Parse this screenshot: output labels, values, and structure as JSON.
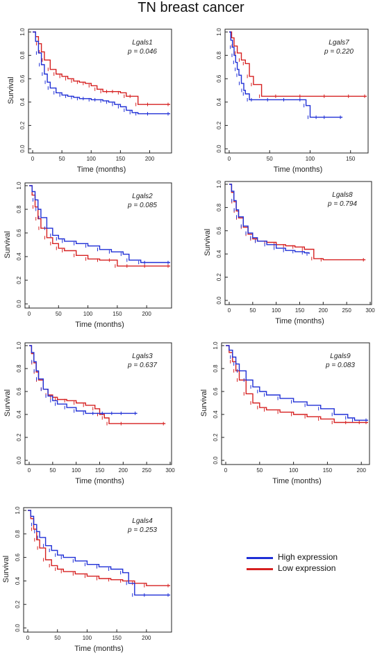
{
  "title": "TN breast cancer",
  "legend": {
    "entries": [
      {
        "label": "High expression",
        "color": "#1f2fd6"
      },
      {
        "label": "Low expression",
        "color": "#d62020"
      }
    ]
  },
  "chart_data": [
    {
      "type": "line",
      "gene": "Lgals1",
      "pvalue": "p = 0.046",
      "xlabel": "Time (months)",
      "ylabel": "Survival",
      "xlim": [
        0,
        235
      ],
      "ylim": [
        0,
        1
      ],
      "xticks": [
        "0",
        "50",
        "100",
        "150",
        "200"
      ],
      "yticks": [
        "0.0",
        "0.2",
        "0.4",
        "0.6",
        "0.8",
        "1.0"
      ],
      "grid": false,
      "series": [
        {
          "name": "High expression",
          "color": "#1f2fd6",
          "x": [
            0,
            5,
            10,
            15,
            20,
            25,
            30,
            40,
            50,
            60,
            70,
            80,
            90,
            100,
            110,
            120,
            130,
            140,
            150,
            160,
            170,
            180,
            200,
            235
          ],
          "y": [
            1,
            0.92,
            0.82,
            0.72,
            0.64,
            0.57,
            0.52,
            0.48,
            0.46,
            0.45,
            0.44,
            0.43,
            0.43,
            0.42,
            0.42,
            0.41,
            0.4,
            0.38,
            0.36,
            0.33,
            0.31,
            0.3,
            0.3,
            0.3
          ]
        },
        {
          "name": "Low expression",
          "color": "#d62020",
          "x": [
            0,
            5,
            10,
            15,
            20,
            30,
            40,
            50,
            60,
            70,
            80,
            90,
            100,
            110,
            120,
            130,
            140,
            150,
            160,
            170,
            180,
            200,
            235
          ],
          "y": [
            1,
            0.96,
            0.9,
            0.83,
            0.76,
            0.68,
            0.64,
            0.62,
            0.6,
            0.58,
            0.57,
            0.56,
            0.54,
            0.51,
            0.49,
            0.49,
            0.49,
            0.48,
            0.45,
            0.45,
            0.38,
            0.38,
            0.38
          ]
        }
      ]
    },
    {
      "type": "line",
      "gene": "Lgals7",
      "pvalue": "p = 0.220",
      "xlabel": "Time (months)",
      "ylabel": "",
      "xlim": [
        0,
        170
      ],
      "ylim": [
        0,
        1
      ],
      "xticks": [
        "0",
        "50",
        "100",
        "150"
      ],
      "yticks": [
        "0.0",
        "0.2",
        "0.4",
        "0.6",
        "0.8",
        "1.0"
      ],
      "grid": false,
      "series": [
        {
          "name": "High expression",
          "color": "#1f2fd6",
          "x": [
            0,
            2,
            4,
            6,
            8,
            10,
            12,
            15,
            18,
            20,
            25,
            30,
            50,
            70,
            90,
            95,
            100,
            110,
            120,
            140
          ],
          "y": [
            1,
            0.93,
            0.87,
            0.8,
            0.74,
            0.68,
            0.63,
            0.56,
            0.5,
            0.47,
            0.42,
            0.42,
            0.42,
            0.42,
            0.42,
            0.37,
            0.27,
            0.27,
            0.27,
            0.27
          ]
        },
        {
          "name": "Low expression",
          "color": "#d62020",
          "x": [
            0,
            3,
            6,
            10,
            15,
            20,
            25,
            30,
            40,
            60,
            90,
            120,
            150,
            170
          ],
          "y": [
            1,
            0.95,
            0.88,
            0.82,
            0.76,
            0.73,
            0.62,
            0.55,
            0.45,
            0.45,
            0.45,
            0.45,
            0.45,
            0.45
          ]
        }
      ]
    },
    {
      "type": "line",
      "gene": "Lgals2",
      "pvalue": "p = 0.085",
      "xlabel": "Time (months)",
      "ylabel": "Survival",
      "xlim": [
        0,
        240
      ],
      "ylim": [
        0,
        1
      ],
      "xticks": [
        "0",
        "50",
        "100",
        "150",
        "200"
      ],
      "yticks": [
        "0.0",
        "0.2",
        "0.4",
        "0.6",
        "0.8",
        "1.0"
      ],
      "grid": false,
      "series": [
        {
          "name": "High expression",
          "color": "#1f2fd6",
          "x": [
            0,
            5,
            10,
            15,
            20,
            30,
            40,
            50,
            60,
            80,
            100,
            120,
            140,
            160,
            170,
            190,
            200,
            240
          ],
          "y": [
            1,
            0.95,
            0.88,
            0.8,
            0.73,
            0.64,
            0.58,
            0.55,
            0.53,
            0.51,
            0.49,
            0.46,
            0.44,
            0.42,
            0.37,
            0.35,
            0.35,
            0.35
          ]
        },
        {
          "name": "Low expression",
          "color": "#d62020",
          "x": [
            0,
            5,
            10,
            15,
            20,
            30,
            40,
            50,
            60,
            80,
            100,
            120,
            140,
            150,
            170,
            200,
            240
          ],
          "y": [
            1,
            0.92,
            0.82,
            0.72,
            0.64,
            0.56,
            0.51,
            0.47,
            0.45,
            0.41,
            0.38,
            0.37,
            0.37,
            0.32,
            0.32,
            0.32,
            0.32
          ]
        }
      ]
    },
    {
      "type": "line",
      "gene": "Lgals8",
      "pvalue": "p = 0.794",
      "xlabel": "Time (months)",
      "ylabel": "Survival",
      "xlim": [
        0,
        300
      ],
      "ylim": [
        0,
        1
      ],
      "xticks": [
        "0",
        "50",
        "100",
        "150",
        "200",
        "250",
        "300"
      ],
      "yticks": [
        "0.0",
        "0.2",
        "0.4",
        "0.6",
        "0.8",
        "1.0"
      ],
      "grid": false,
      "series": [
        {
          "name": "High expression",
          "color": "#1f2fd6",
          "x": [
            0,
            5,
            10,
            15,
            20,
            30,
            40,
            50,
            60,
            80,
            100,
            120,
            140,
            160,
            170
          ],
          "y": [
            1,
            0.94,
            0.86,
            0.78,
            0.72,
            0.64,
            0.58,
            0.54,
            0.51,
            0.48,
            0.45,
            0.43,
            0.42,
            0.41,
            0.4
          ]
        },
        {
          "name": "Low expression",
          "color": "#d62020",
          "x": [
            0,
            5,
            10,
            15,
            20,
            30,
            40,
            50,
            60,
            80,
            100,
            120,
            140,
            160,
            180,
            200,
            290
          ],
          "y": [
            1,
            0.93,
            0.85,
            0.77,
            0.71,
            0.63,
            0.57,
            0.53,
            0.51,
            0.5,
            0.48,
            0.47,
            0.46,
            0.44,
            0.36,
            0.35,
            0.35
          ]
        }
      ]
    },
    {
      "type": "line",
      "gene": "Lgals3",
      "pvalue": "p = 0.637",
      "xlabel": "Time (months)",
      "ylabel": "Survival",
      "xlim": [
        0,
        300
      ],
      "ylim": [
        0,
        1
      ],
      "xticks": [
        "0",
        "50",
        "100",
        "150",
        "200",
        "250",
        "300"
      ],
      "yticks": [
        "0.0",
        "0.2",
        "0.4",
        "0.6",
        "0.8",
        "1.0"
      ],
      "grid": false,
      "series": [
        {
          "name": "High expression",
          "color": "#1f2fd6",
          "x": [
            0,
            5,
            10,
            15,
            20,
            30,
            40,
            50,
            60,
            80,
            100,
            120,
            140,
            160,
            180,
            200,
            230
          ],
          "y": [
            1,
            0.94,
            0.86,
            0.78,
            0.71,
            0.62,
            0.56,
            0.52,
            0.49,
            0.46,
            0.43,
            0.41,
            0.41,
            0.41,
            0.41,
            0.41,
            0.41
          ]
        },
        {
          "name": "Low expression",
          "color": "#d62020",
          "x": [
            0,
            5,
            10,
            15,
            20,
            30,
            40,
            50,
            60,
            80,
            100,
            120,
            140,
            150,
            160,
            170,
            200,
            290
          ],
          "y": [
            1,
            0.93,
            0.85,
            0.77,
            0.7,
            0.62,
            0.57,
            0.55,
            0.53,
            0.52,
            0.5,
            0.48,
            0.45,
            0.4,
            0.37,
            0.32,
            0.32,
            0.32
          ]
        }
      ]
    },
    {
      "type": "line",
      "gene": "Lgals9",
      "pvalue": "p = 0.083",
      "xlabel": "Time (months)",
      "ylabel": "Survival",
      "xlim": [
        0,
        210
      ],
      "ylim": [
        0,
        1
      ],
      "xticks": [
        "0",
        "50",
        "100",
        "150",
        "200"
      ],
      "yticks": [
        "0.0",
        "0.2",
        "0.4",
        "0.6",
        "0.8",
        "1.0"
      ],
      "grid": false,
      "series": [
        {
          "name": "High expression",
          "color": "#1f2fd6",
          "x": [
            0,
            5,
            10,
            15,
            20,
            30,
            40,
            50,
            60,
            80,
            100,
            120,
            140,
            160,
            180,
            190,
            210
          ],
          "y": [
            1,
            0.96,
            0.9,
            0.84,
            0.78,
            0.7,
            0.64,
            0.6,
            0.57,
            0.54,
            0.51,
            0.48,
            0.45,
            0.4,
            0.37,
            0.35,
            0.35
          ]
        },
        {
          "name": "Low expression",
          "color": "#d62020",
          "x": [
            0,
            5,
            10,
            15,
            20,
            30,
            40,
            50,
            60,
            80,
            100,
            120,
            140,
            160,
            180,
            200,
            210
          ],
          "y": [
            1,
            0.94,
            0.86,
            0.78,
            0.7,
            0.58,
            0.5,
            0.46,
            0.44,
            0.42,
            0.4,
            0.38,
            0.36,
            0.33,
            0.33,
            0.33,
            0.33
          ]
        }
      ]
    },
    {
      "type": "line",
      "gene": "Lgals4",
      "pvalue": "p = 0.253",
      "xlabel": "Time (months)",
      "ylabel": "Survival",
      "xlim": [
        0,
        240
      ],
      "ylim": [
        0,
        1
      ],
      "xticks": [
        "0",
        "50",
        "100",
        "150",
        "200"
      ],
      "yticks": [
        "0.0",
        "0.2",
        "0.4",
        "0.6",
        "0.8",
        "1.0"
      ],
      "grid": false,
      "series": [
        {
          "name": "High expression",
          "color": "#1f2fd6",
          "x": [
            0,
            5,
            10,
            15,
            20,
            30,
            40,
            50,
            60,
            80,
            100,
            120,
            140,
            160,
            170,
            180,
            200,
            240
          ],
          "y": [
            1,
            0.95,
            0.88,
            0.82,
            0.77,
            0.7,
            0.66,
            0.62,
            0.6,
            0.57,
            0.54,
            0.52,
            0.5,
            0.47,
            0.38,
            0.28,
            0.28,
            0.28
          ]
        },
        {
          "name": "Low expression",
          "color": "#d62020",
          "x": [
            0,
            5,
            10,
            15,
            20,
            30,
            40,
            50,
            60,
            80,
            100,
            120,
            140,
            160,
            180,
            200,
            240
          ],
          "y": [
            1,
            0.93,
            0.84,
            0.75,
            0.68,
            0.58,
            0.53,
            0.5,
            0.48,
            0.46,
            0.44,
            0.42,
            0.41,
            0.4,
            0.38,
            0.36,
            0.36
          ]
        }
      ]
    }
  ]
}
